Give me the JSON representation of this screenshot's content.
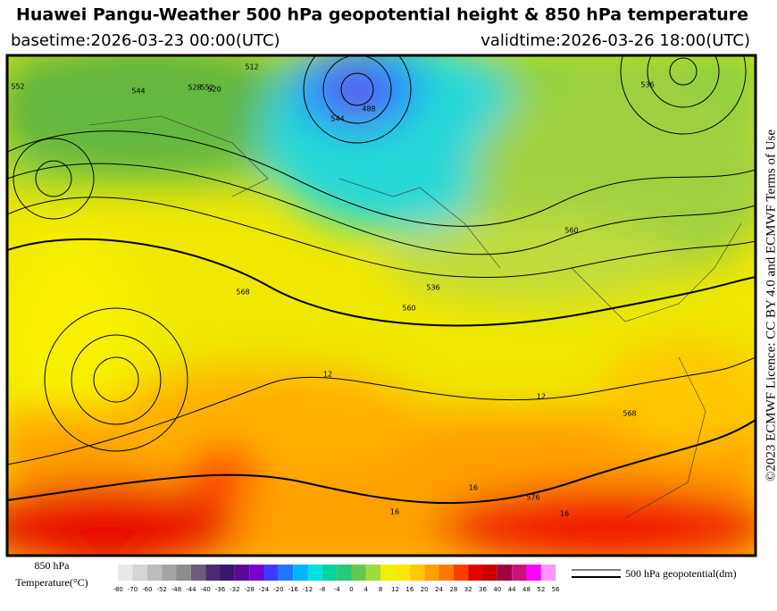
{
  "header": {
    "title": "Huawei Pangu-Weather 500 hPa geopotential height & 850 hPa temperature",
    "basetime": "basetime:2026-03-23 00:00(UTC)",
    "validtime": "validtime:2026-03-26 18:00(UTC)"
  },
  "credit": "©2023 ECMWF Licence: CC BY 4.0 and ECMWF Terms of Use",
  "map": {
    "contour_labels": [
      "552",
      "544",
      "528",
      "520",
      "512",
      "488",
      "544",
      "568",
      "552",
      "560",
      "536",
      "576",
      "568",
      "12",
      "12",
      "16",
      "16",
      "16",
      "560",
      "536"
    ]
  },
  "legend": {
    "temperature_title": [
      "850 hPa",
      "Temperature(°C)"
    ],
    "ticks": [
      "-80",
      "-70",
      "-60",
      "-52",
      "-48",
      "-44",
      "-40",
      "-36",
      "-32",
      "-28",
      "-24",
      "-20",
      "-16",
      "-12",
      "-8",
      "-4",
      "0",
      "4",
      "8",
      "12",
      "16",
      "20",
      "24",
      "28",
      "32",
      "36",
      "40",
      "44",
      "48",
      "52",
      "56"
    ],
    "colors": [
      "#e8e8e8",
      "#d4d4d4",
      "#bcbcbc",
      "#a4a4a4",
      "#8c8c8c",
      "#6e5a7a",
      "#4b2c6e",
      "#3c1470",
      "#5a0a9a",
      "#7a00d2",
      "#3c3cff",
      "#1e78ff",
      "#00b4ff",
      "#00e0e0",
      "#00d2a0",
      "#28c878",
      "#64c850",
      "#a0dc3c",
      "#f0f000",
      "#ffe600",
      "#ffc800",
      "#ffa000",
      "#ff7800",
      "#ff3c00",
      "#e60000",
      "#c80000",
      "#a00040",
      "#c8147a",
      "#ff00ff",
      "#ff96ff"
    ],
    "contour_legend": "500 hPa geopotential(dm)"
  }
}
